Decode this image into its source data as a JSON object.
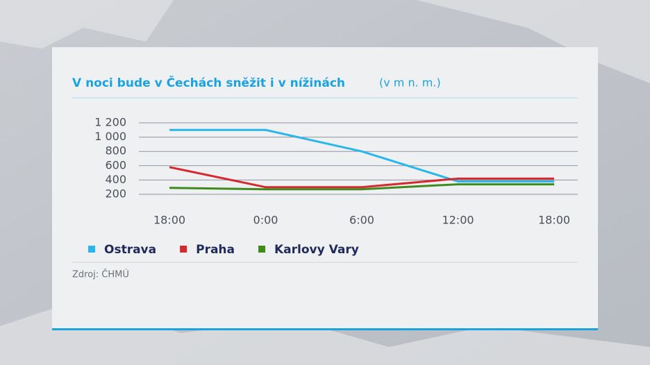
{
  "chart_data": {
    "type": "line",
    "title": "V noci bude v Čechách sněžit i v nížinách",
    "subtitle": "(v m n. m.)",
    "source": "Zdroj: ČHMÚ",
    "categories": [
      "18:00",
      "0:00",
      "6:00",
      "12:00",
      "18:00"
    ],
    "series": [
      {
        "name": "Ostrava",
        "color": "#29b6ea",
        "values": [
          1100,
          1100,
          800,
          380,
          380
        ]
      },
      {
        "name": "Praha",
        "color": "#d42a2f",
        "values": [
          580,
          300,
          300,
          420,
          420
        ]
      },
      {
        "name": "Karlovy Vary",
        "color": "#3f8a1e",
        "values": [
          290,
          270,
          270,
          340,
          340
        ]
      }
    ],
    "ylim": [
      200,
      1200
    ],
    "yticks": [
      200,
      400,
      600,
      800,
      {
        "value": 1000,
        "label": "1 000"
      },
      {
        "value": 1200,
        "label": "1 200"
      }
    ],
    "grid": true
  }
}
